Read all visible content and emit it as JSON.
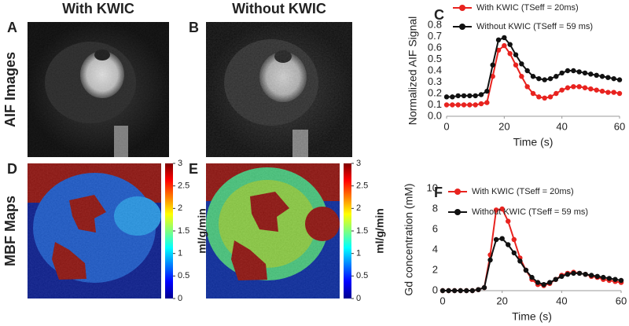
{
  "panel_labels": [
    "A",
    "B",
    "C",
    "D",
    "E",
    "F"
  ],
  "columns": [
    "With KWIC",
    "Without KWIC"
  ],
  "rows": [
    "AIF Images",
    "MBF Maps"
  ],
  "colorbars": [
    {
      "label": "ml/g/min",
      "lim": [
        0,
        3
      ],
      "ticks": [
        0,
        0.5,
        1,
        1.5,
        2,
        2.5,
        3
      ]
    },
    {
      "label": "ml/g/min",
      "lim": [
        0,
        3
      ],
      "ticks": [
        0,
        0.5,
        1,
        1.5,
        2,
        2.5,
        3
      ]
    }
  ],
  "chart_data": [
    {
      "type": "line",
      "x_label": "Time (s)",
      "y_label": "Normalized AIF Signal",
      "x": [
        0,
        2,
        4,
        6,
        8,
        10,
        12,
        14,
        16,
        18,
        20,
        22,
        24,
        26,
        28,
        30,
        32,
        34,
        36,
        38,
        40,
        42,
        44,
        46,
        48,
        50,
        52,
        54,
        56,
        58,
        60
      ],
      "xlim": [
        0,
        60
      ],
      "xticks": [
        0,
        20,
        40,
        60
      ],
      "ylim": [
        0,
        0.8
      ],
      "yticks": [
        {
          "value": 0,
          "label": "0.0"
        },
        0.1,
        0.2,
        0.3,
        0.4,
        0.5,
        0.6,
        0.7,
        0.8
      ],
      "series": [
        {
          "name": "With KWIC (TSeff = 20ms)",
          "color": "#e8231f",
          "values": [
            0.1,
            0.1,
            0.1,
            0.1,
            0.1,
            0.1,
            0.11,
            0.12,
            0.35,
            0.58,
            0.62,
            0.55,
            0.45,
            0.35,
            0.26,
            0.2,
            0.17,
            0.16,
            0.17,
            0.2,
            0.23,
            0.25,
            0.26,
            0.26,
            0.25,
            0.24,
            0.23,
            0.22,
            0.21,
            0.21,
            0.2
          ]
        },
        {
          "name": "Without KWIC (TSeff = 59 ms)",
          "color": "#111111",
          "values": [
            0.17,
            0.17,
            0.18,
            0.18,
            0.18,
            0.18,
            0.19,
            0.22,
            0.45,
            0.67,
            0.69,
            0.63,
            0.54,
            0.46,
            0.4,
            0.35,
            0.33,
            0.32,
            0.33,
            0.35,
            0.38,
            0.4,
            0.4,
            0.39,
            0.38,
            0.37,
            0.36,
            0.35,
            0.34,
            0.33,
            0.32
          ]
        }
      ]
    },
    {
      "type": "line",
      "x_label": "Time (s)",
      "y_label": "Gd concentration (mM)",
      "x": [
        0,
        2,
        4,
        6,
        8,
        10,
        12,
        14,
        16,
        18,
        20,
        22,
        24,
        26,
        28,
        30,
        32,
        34,
        36,
        38,
        40,
        42,
        44,
        46,
        48,
        50,
        52,
        54,
        56,
        58,
        60
      ],
      "xlim": [
        0,
        60
      ],
      "xticks": [
        0,
        20,
        40,
        60
      ],
      "ylim": [
        0,
        10
      ],
      "yticks": [
        0,
        2,
        4,
        6,
        8,
        10
      ],
      "series": [
        {
          "name": "With KWIC (TSeff = 20ms)",
          "color": "#e8231f",
          "values": [
            0,
            0,
            0,
            0,
            0,
            0,
            0.1,
            0.3,
            3.5,
            7.9,
            8.0,
            6.8,
            5.0,
            3.2,
            2.0,
            1.1,
            0.6,
            0.5,
            0.7,
            1.1,
            1.5,
            1.7,
            1.8,
            1.7,
            1.6,
            1.4,
            1.3,
            1.1,
            1.0,
            0.9,
            0.8
          ]
        },
        {
          "name": "Without KWIC (TSeff = 59 ms)",
          "color": "#111111",
          "values": [
            0,
            0,
            0,
            0,
            0,
            0,
            0.1,
            0.3,
            3.0,
            5.0,
            5.1,
            4.5,
            3.7,
            2.9,
            2.0,
            1.3,
            0.8,
            0.6,
            0.8,
            1.1,
            1.4,
            1.6,
            1.7,
            1.7,
            1.6,
            1.5,
            1.4,
            1.3,
            1.2,
            1.1,
            1.0
          ]
        }
      ]
    }
  ]
}
